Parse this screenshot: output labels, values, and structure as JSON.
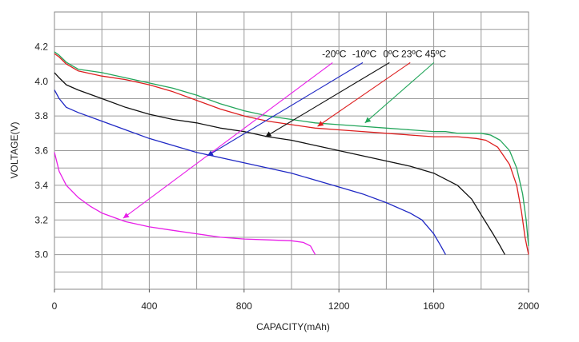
{
  "chart_data": {
    "type": "line",
    "xlabel": "CAPACITY(mAh)",
    "ylabel": "VOLTAGE(V)",
    "xlim": [
      0,
      2000
    ],
    "ylim": [
      2.8,
      4.4
    ],
    "x_ticks": [
      "0",
      "400",
      "800",
      "1200",
      "1600",
      "2000"
    ],
    "y_ticks": [
      "3.0",
      "3.2",
      "3.4",
      "3.6",
      "3.8",
      "4.0",
      "4.2"
    ],
    "grid": true,
    "series": [
      {
        "name": "-20ºC",
        "color": "#e81ee8",
        "points": [
          [
            0,
            3.59
          ],
          [
            20,
            3.48
          ],
          [
            50,
            3.4
          ],
          [
            100,
            3.33
          ],
          [
            150,
            3.28
          ],
          [
            200,
            3.24
          ],
          [
            260,
            3.21
          ],
          [
            300,
            3.19
          ],
          [
            400,
            3.16
          ],
          [
            500,
            3.14
          ],
          [
            600,
            3.12
          ],
          [
            700,
            3.1
          ],
          [
            800,
            3.09
          ],
          [
            900,
            3.085
          ],
          [
            1000,
            3.08
          ],
          [
            1050,
            3.07
          ],
          [
            1080,
            3.05
          ],
          [
            1100,
            3.0
          ]
        ],
        "label_point": [
          1520,
          4.14
        ],
        "arrow_tip": [
          290,
          3.21
        ]
      },
      {
        "name": "-10ºC",
        "color": "#1f28c4",
        "points": [
          [
            0,
            3.95
          ],
          [
            20,
            3.9
          ],
          [
            50,
            3.85
          ],
          [
            100,
            3.82
          ],
          [
            200,
            3.77
          ],
          [
            300,
            3.72
          ],
          [
            400,
            3.67
          ],
          [
            500,
            3.63
          ],
          [
            600,
            3.59
          ],
          [
            700,
            3.56
          ],
          [
            800,
            3.53
          ],
          [
            900,
            3.5
          ],
          [
            1000,
            3.47
          ],
          [
            1100,
            3.43
          ],
          [
            1200,
            3.39
          ],
          [
            1300,
            3.35
          ],
          [
            1400,
            3.3
          ],
          [
            1500,
            3.24
          ],
          [
            1550,
            3.2
          ],
          [
            1600,
            3.12
          ],
          [
            1630,
            3.05
          ],
          [
            1650,
            3.0
          ]
        ],
        "label_point": [
          1775,
          4.14
        ],
        "arrow_tip": [
          645,
          3.57
        ]
      },
      {
        "name": "0ºC",
        "color": "#111111",
        "points": [
          [
            0,
            4.05
          ],
          [
            20,
            4.02
          ],
          [
            50,
            3.98
          ],
          [
            100,
            3.95
          ],
          [
            200,
            3.9
          ],
          [
            300,
            3.85
          ],
          [
            400,
            3.81
          ],
          [
            500,
            3.78
          ],
          [
            600,
            3.76
          ],
          [
            700,
            3.73
          ],
          [
            800,
            3.71
          ],
          [
            900,
            3.68
          ],
          [
            1000,
            3.66
          ],
          [
            1100,
            3.63
          ],
          [
            1200,
            3.6
          ],
          [
            1300,
            3.57
          ],
          [
            1400,
            3.54
          ],
          [
            1500,
            3.51
          ],
          [
            1600,
            3.47
          ],
          [
            1700,
            3.4
          ],
          [
            1760,
            3.32
          ],
          [
            1800,
            3.23
          ],
          [
            1850,
            3.12
          ],
          [
            1880,
            3.05
          ],
          [
            1900,
            3.0
          ]
        ],
        "label_point": [
          2000,
          4.14
        ],
        "arrow_tip": [
          890,
          3.68
        ]
      },
      {
        "name": "23ºC",
        "color": "#dd1f1f",
        "points": [
          [
            0,
            4.16
          ],
          [
            20,
            4.14
          ],
          [
            50,
            4.1
          ],
          [
            100,
            4.06
          ],
          [
            200,
            4.03
          ],
          [
            300,
            4.01
          ],
          [
            400,
            3.98
          ],
          [
            500,
            3.94
          ],
          [
            600,
            3.89
          ],
          [
            700,
            3.84
          ],
          [
            800,
            3.8
          ],
          [
            900,
            3.77
          ],
          [
            1000,
            3.75
          ],
          [
            1100,
            3.73
          ],
          [
            1200,
            3.72
          ],
          [
            1300,
            3.71
          ],
          [
            1400,
            3.7
          ],
          [
            1500,
            3.69
          ],
          [
            1600,
            3.68
          ],
          [
            1700,
            3.68
          ],
          [
            1780,
            3.67
          ],
          [
            1820,
            3.66
          ],
          [
            1870,
            3.62
          ],
          [
            1920,
            3.52
          ],
          [
            1950,
            3.4
          ],
          [
            1970,
            3.25
          ],
          [
            1985,
            3.1
          ],
          [
            2000,
            3.0
          ]
        ],
        "label_point": [
          2175,
          4.14
        ],
        "arrow_tip": [
          1110,
          3.74
        ]
      },
      {
        "name": "45ºC",
        "color": "#22a55a",
        "points": [
          [
            0,
            4.17
          ],
          [
            20,
            4.15
          ],
          [
            50,
            4.11
          ],
          [
            100,
            4.07
          ],
          [
            200,
            4.05
          ],
          [
            300,
            4.02
          ],
          [
            400,
            3.99
          ],
          [
            500,
            3.96
          ],
          [
            600,
            3.92
          ],
          [
            700,
            3.87
          ],
          [
            800,
            3.83
          ],
          [
            900,
            3.8
          ],
          [
            1000,
            3.78
          ],
          [
            1100,
            3.76
          ],
          [
            1200,
            3.75
          ],
          [
            1300,
            3.74
          ],
          [
            1400,
            3.73
          ],
          [
            1500,
            3.72
          ],
          [
            1600,
            3.71
          ],
          [
            1650,
            3.71
          ],
          [
            1700,
            3.7
          ],
          [
            1750,
            3.7
          ],
          [
            1800,
            3.7
          ],
          [
            1840,
            3.69
          ],
          [
            1880,
            3.66
          ],
          [
            1920,
            3.6
          ],
          [
            1950,
            3.5
          ],
          [
            1975,
            3.35
          ],
          [
            1990,
            3.2
          ],
          [
            2000,
            3.05
          ]
        ],
        "label_point": [
          2375,
          4.14
        ],
        "arrow_tip": [
          1310,
          3.76
        ]
      }
    ]
  }
}
